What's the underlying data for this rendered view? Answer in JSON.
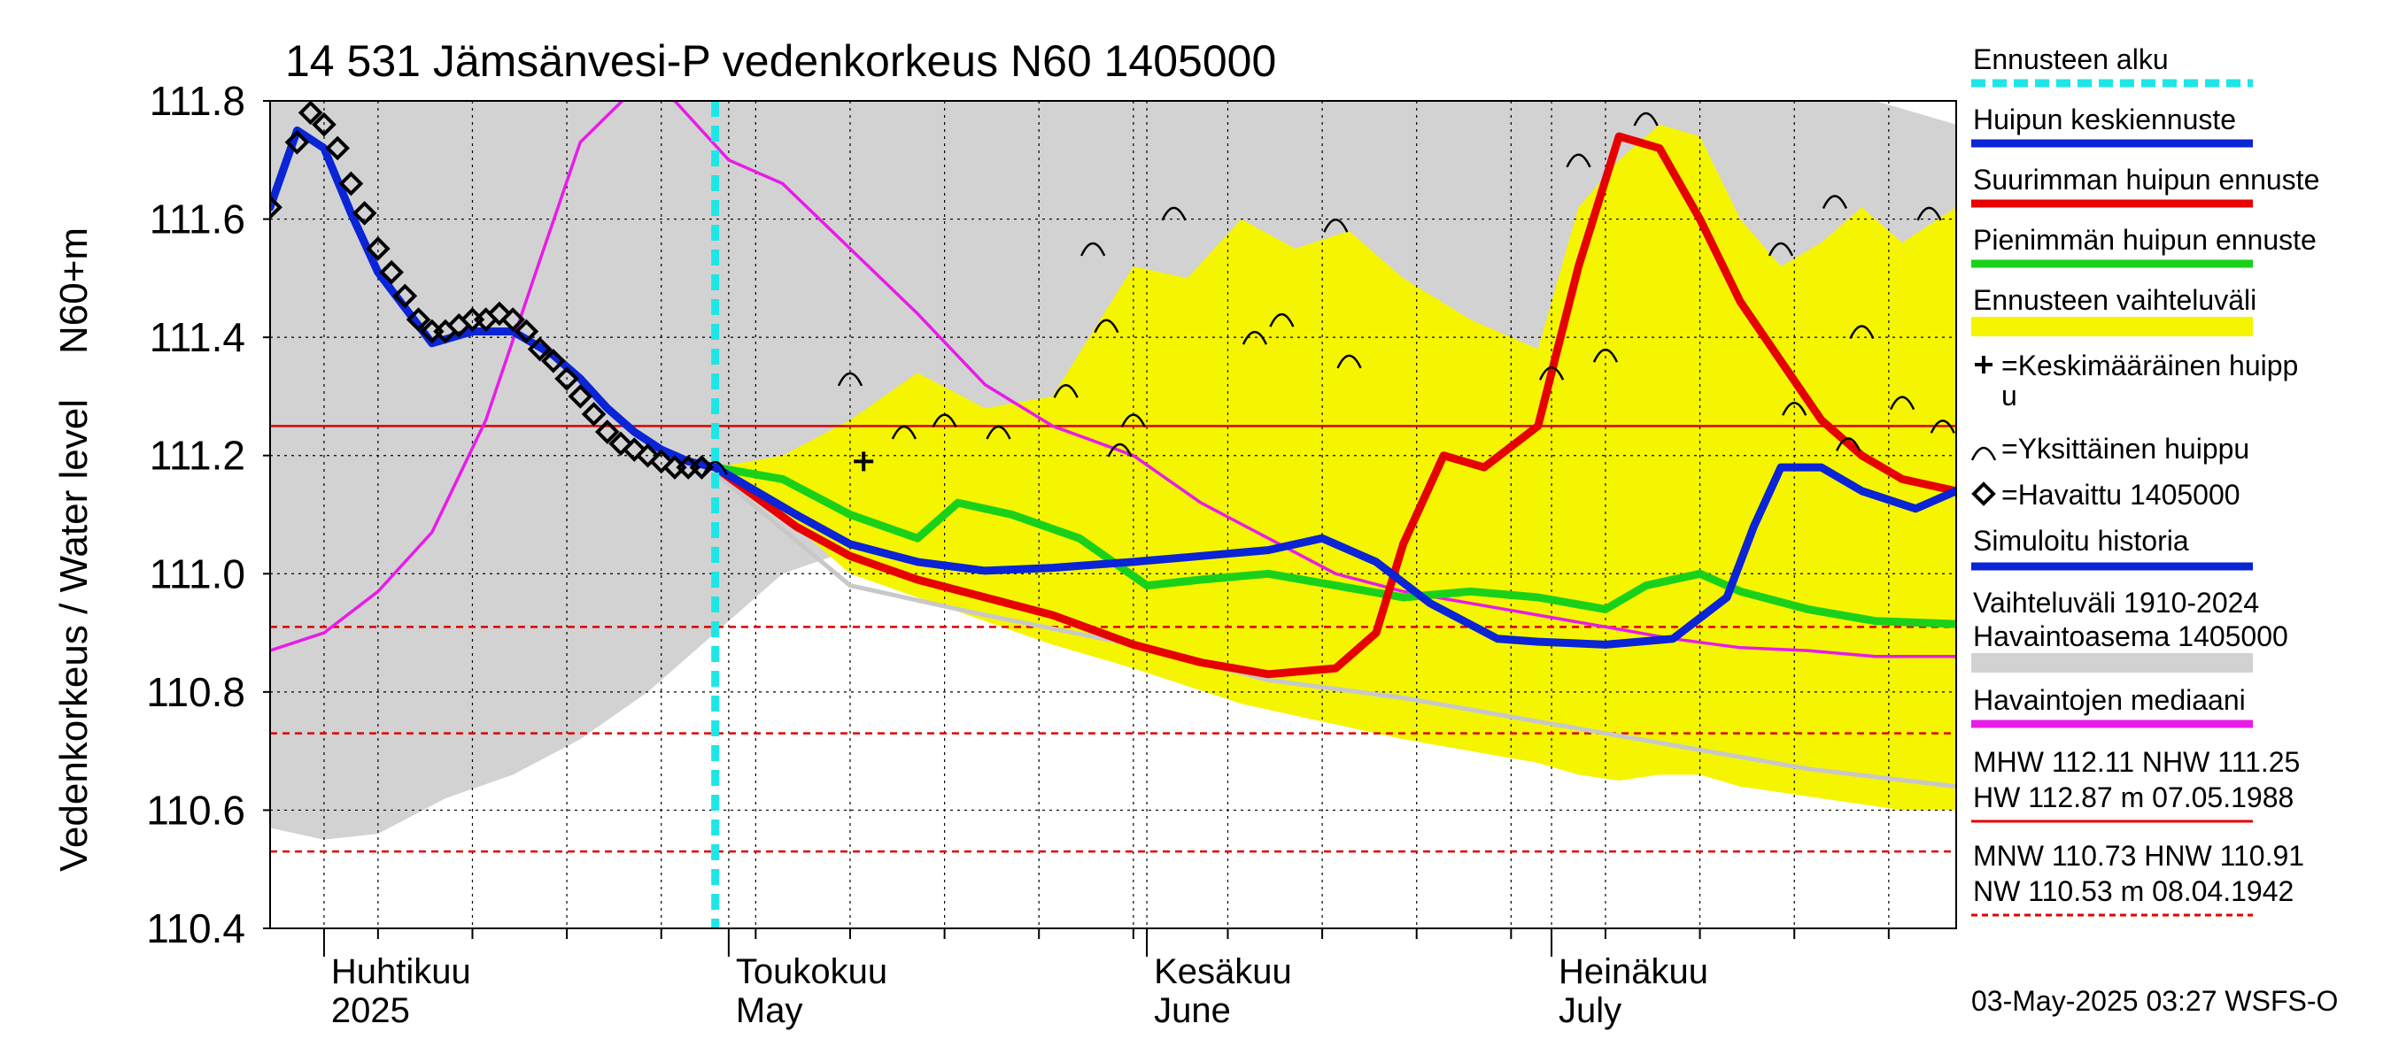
{
  "chart_data": {
    "type": "line",
    "title": "14 531 Jämsänvesi-P vedenkorkeus N60 1405000",
    "ylabel": "Vedenkorkeus / Water level",
    "yunit": "N60+m",
    "ylim": [
      110.4,
      111.8
    ],
    "yticks": [
      "110.4",
      "110.6",
      "110.8",
      "111.0",
      "111.2",
      "111.4",
      "111.6",
      "111.8"
    ],
    "xlim": [
      "2025-03-28",
      "2025-07-31"
    ],
    "months": [
      {
        "fi": "Huhtikuu",
        "en": "2025",
        "date": "2025-04-01"
      },
      {
        "fi": "Toukokuu",
        "en": "May",
        "date": "2025-05-01"
      },
      {
        "fi": "Kesäkuu",
        "en": "June",
        "date": "2025-06-01"
      },
      {
        "fi": "Heinäkuu",
        "en": "July",
        "date": "2025-07-01"
      }
    ],
    "forecast_start": "2025-04-30",
    "reference_lines": [
      {
        "value": 111.25,
        "style": "solid",
        "color": "#e00000"
      },
      {
        "value": 110.91,
        "style": "dashed",
        "color": "#e00000"
      },
      {
        "value": 110.73,
        "style": "dashed",
        "color": "#e00000"
      },
      {
        "value": 110.53,
        "style": "dashed",
        "color": "#e00000"
      }
    ],
    "history_band": {
      "x": [
        "2025-03-28",
        "2025-04-01",
        "2025-04-05",
        "2025-04-10",
        "2025-04-15",
        "2025-04-20",
        "2025-04-25",
        "2025-04-28",
        "2025-05-01",
        "2025-05-05",
        "2025-05-10",
        "2025-05-15",
        "2025-05-20",
        "2025-05-25",
        "2025-05-31",
        "2025-06-05",
        "2025-06-10",
        "2025-06-15",
        "2025-06-20",
        "2025-06-25",
        "2025-06-30",
        "2025-07-05",
        "2025-07-10",
        "2025-07-15",
        "2025-07-20",
        "2025-07-25",
        "2025-07-31"
      ],
      "upper": [
        111.8,
        111.8,
        111.8,
        111.8,
        111.8,
        111.8,
        111.8,
        111.8,
        111.8,
        111.8,
        111.8,
        111.8,
        111.8,
        111.8,
        111.8,
        111.8,
        111.8,
        111.8,
        111.8,
        111.8,
        111.8,
        111.8,
        111.8,
        111.8,
        111.8,
        111.8,
        111.76
      ],
      "lower": [
        110.57,
        110.55,
        110.56,
        110.62,
        110.66,
        110.72,
        110.8,
        110.86,
        110.92,
        111.0,
        111.04,
        110.98,
        110.94,
        110.9,
        110.86,
        110.83,
        110.8,
        110.78,
        110.76,
        110.74,
        110.72,
        110.7,
        110.69,
        110.68,
        110.67,
        110.66,
        110.65
      ]
    },
    "forecast_band": {
      "x": [
        "2025-04-30",
        "2025-05-05",
        "2025-05-10",
        "2025-05-15",
        "2025-05-20",
        "2025-05-25",
        "2025-05-31",
        "2025-06-04",
        "2025-06-08",
        "2025-06-12",
        "2025-06-16",
        "2025-06-20",
        "2025-06-25",
        "2025-06-30",
        "2025-07-03",
        "2025-07-06",
        "2025-07-09",
        "2025-07-12",
        "2025-07-15",
        "2025-07-18",
        "2025-07-21",
        "2025-07-24",
        "2025-07-27",
        "2025-07-31"
      ],
      "upper": [
        111.18,
        111.2,
        111.26,
        111.34,
        111.28,
        111.3,
        111.52,
        111.5,
        111.6,
        111.55,
        111.58,
        111.5,
        111.43,
        111.38,
        111.62,
        111.7,
        111.76,
        111.74,
        111.6,
        111.52,
        111.56,
        111.62,
        111.56,
        111.62
      ],
      "lower": [
        111.17,
        111.1,
        111.0,
        110.96,
        110.92,
        110.88,
        110.84,
        110.81,
        110.78,
        110.76,
        110.74,
        110.72,
        110.7,
        110.68,
        110.66,
        110.65,
        110.66,
        110.66,
        110.64,
        110.63,
        110.62,
        110.61,
        110.6,
        110.6
      ]
    },
    "series": [
      {
        "name": "Huipun keskiennuste",
        "color": "#0a24d6",
        "x": [
          "2025-04-30",
          "2025-05-03",
          "2025-05-06",
          "2025-05-10",
          "2025-05-15",
          "2025-05-20",
          "2025-05-25",
          "2025-05-31",
          "2025-06-05",
          "2025-06-10",
          "2025-06-14",
          "2025-06-18",
          "2025-06-22",
          "2025-06-27",
          "2025-06-30",
          "2025-07-05",
          "2025-07-10",
          "2025-07-14",
          "2025-07-16",
          "2025-07-18",
          "2025-07-21",
          "2025-07-24",
          "2025-07-28",
          "2025-07-31"
        ],
        "y": [
          111.18,
          111.14,
          111.1,
          111.05,
          111.02,
          111.005,
          111.01,
          111.02,
          111.03,
          111.04,
          111.06,
          111.02,
          110.95,
          110.89,
          110.885,
          110.88,
          110.89,
          110.96,
          111.08,
          111.18,
          111.18,
          111.14,
          111.11,
          111.14
        ]
      },
      {
        "name": "Suurimman huipun ennuste",
        "color": "#e60000",
        "x": [
          "2025-04-30",
          "2025-05-03",
          "2025-05-06",
          "2025-05-10",
          "2025-05-15",
          "2025-05-20",
          "2025-05-25",
          "2025-05-31",
          "2025-06-05",
          "2025-06-10",
          "2025-06-15",
          "2025-06-18",
          "2025-06-20",
          "2025-06-23",
          "2025-06-26",
          "2025-06-30",
          "2025-07-03",
          "2025-07-06",
          "2025-07-09",
          "2025-07-12",
          "2025-07-15",
          "2025-07-18",
          "2025-07-21",
          "2025-07-24",
          "2025-07-27",
          "2025-07-31"
        ],
        "y": [
          111.18,
          111.13,
          111.08,
          111.03,
          110.99,
          110.96,
          110.93,
          110.88,
          110.85,
          110.83,
          110.84,
          110.9,
          111.05,
          111.2,
          111.18,
          111.25,
          111.52,
          111.74,
          111.72,
          111.6,
          111.46,
          111.36,
          111.26,
          111.2,
          111.16,
          111.14
        ]
      },
      {
        "name": "Pienimmän huipun ennuste",
        "color": "#1ad11a",
        "x": [
          "2025-04-30",
          "2025-05-05",
          "2025-05-10",
          "2025-05-15",
          "2025-05-18",
          "2025-05-22",
          "2025-05-27",
          "2025-06-01",
          "2025-06-05",
          "2025-06-10",
          "2025-06-15",
          "2025-06-20",
          "2025-06-25",
          "2025-06-30",
          "2025-07-05",
          "2025-07-08",
          "2025-07-12",
          "2025-07-15",
          "2025-07-20",
          "2025-07-25",
          "2025-07-31"
        ],
        "y": [
          111.18,
          111.16,
          111.1,
          111.06,
          111.12,
          111.1,
          111.06,
          110.98,
          110.99,
          111.0,
          110.98,
          110.96,
          110.97,
          110.96,
          110.94,
          110.98,
          111.0,
          110.97,
          110.94,
          110.92,
          110.915
        ]
      },
      {
        "name": "Simuloitu historia",
        "color": "#0a24d6",
        "x": [
          "2025-03-28",
          "2025-03-30",
          "2025-04-01",
          "2025-04-03",
          "2025-04-05",
          "2025-04-07",
          "2025-04-09",
          "2025-04-12",
          "2025-04-15",
          "2025-04-18",
          "2025-04-20",
          "2025-04-22",
          "2025-04-24",
          "2025-04-26",
          "2025-04-28",
          "2025-04-30"
        ],
        "y": [
          111.62,
          111.75,
          111.72,
          111.61,
          111.51,
          111.45,
          111.39,
          111.41,
          111.41,
          111.37,
          111.33,
          111.28,
          111.24,
          111.21,
          111.19,
          111.18
        ]
      },
      {
        "name": "Havaintojen mediaani",
        "color": "#e81ce8",
        "x": [
          "2025-03-28",
          "2025-04-01",
          "2025-04-05",
          "2025-04-09",
          "2025-04-13",
          "2025-04-17",
          "2025-04-20",
          "2025-04-24",
          "2025-04-27",
          "2025-05-01",
          "2025-05-05",
          "2025-05-10",
          "2025-05-15",
          "2025-05-20",
          "2025-05-25",
          "2025-05-31",
          "2025-06-05",
          "2025-06-10",
          "2025-06-15",
          "2025-06-20",
          "2025-06-25",
          "2025-06-30",
          "2025-07-05",
          "2025-07-10",
          "2025-07-15",
          "2025-07-20",
          "2025-07-25",
          "2025-07-31"
        ],
        "y": [
          110.87,
          110.9,
          110.97,
          111.07,
          111.26,
          111.53,
          111.73,
          111.82,
          111.8,
          111.7,
          111.66,
          111.55,
          111.44,
          111.32,
          111.25,
          111.2,
          111.12,
          111.06,
          111.0,
          110.97,
          110.95,
          110.93,
          110.91,
          110.89,
          110.875,
          110.87,
          110.86,
          110.86
        ]
      },
      {
        "name": "Vaihteluväli 1910-2024 Havaintoasema 1405000 (lower)",
        "color": "#c8c8c8",
        "x": [
          "2025-04-30",
          "2025-05-10",
          "2025-05-20",
          "2025-05-31",
          "2025-06-10",
          "2025-06-20",
          "2025-06-30",
          "2025-07-10",
          "2025-07-20",
          "2025-07-31"
        ],
        "y": [
          111.17,
          110.98,
          110.93,
          110.88,
          110.82,
          110.79,
          110.75,
          110.71,
          110.67,
          110.64
        ]
      }
    ],
    "observed": {
      "name": "Havaittu 1405000",
      "x": [
        "2025-03-28",
        "2025-03-30",
        "2025-03-31",
        "2025-04-01",
        "2025-04-02",
        "2025-04-03",
        "2025-04-04",
        "2025-04-05",
        "2025-04-06",
        "2025-04-07",
        "2025-04-08",
        "2025-04-09",
        "2025-04-10",
        "2025-04-11",
        "2025-04-12",
        "2025-04-13",
        "2025-04-14",
        "2025-04-15",
        "2025-04-16",
        "2025-04-17",
        "2025-04-18",
        "2025-04-19",
        "2025-04-20",
        "2025-04-21",
        "2025-04-22",
        "2025-04-23",
        "2025-04-24",
        "2025-04-25",
        "2025-04-26",
        "2025-04-27",
        "2025-04-28",
        "2025-04-29"
      ],
      "y": [
        111.62,
        111.73,
        111.78,
        111.76,
        111.72,
        111.66,
        111.61,
        111.55,
        111.51,
        111.47,
        111.43,
        111.41,
        111.41,
        111.42,
        111.43,
        111.43,
        111.44,
        111.43,
        111.41,
        111.38,
        111.36,
        111.33,
        111.3,
        111.27,
        111.24,
        111.22,
        111.21,
        111.2,
        111.19,
        111.18,
        111.18,
        111.18
      ]
    },
    "single_peaks": [
      {
        "x": "2025-04-30",
        "y": 111.18
      },
      {
        "x": "2025-05-10",
        "y": 111.33
      },
      {
        "x": "2025-05-14",
        "y": 111.24
      },
      {
        "x": "2025-05-17",
        "y": 111.26
      },
      {
        "x": "2025-05-21",
        "y": 111.24
      },
      {
        "x": "2025-05-26",
        "y": 111.31
      },
      {
        "x": "2025-05-28",
        "y": 111.55
      },
      {
        "x": "2025-05-29",
        "y": 111.42
      },
      {
        "x": "2025-05-30",
        "y": 111.21
      },
      {
        "x": "2025-05-31",
        "y": 111.26
      },
      {
        "x": "2025-06-03",
        "y": 111.61
      },
      {
        "x": "2025-06-09",
        "y": 111.4
      },
      {
        "x": "2025-06-11",
        "y": 111.43
      },
      {
        "x": "2025-06-15",
        "y": 111.59
      },
      {
        "x": "2025-06-16",
        "y": 111.36
      },
      {
        "x": "2025-07-01",
        "y": 111.34
      },
      {
        "x": "2025-07-03",
        "y": 111.7
      },
      {
        "x": "2025-07-05",
        "y": 111.37
      },
      {
        "x": "2025-07-08",
        "y": 111.77
      },
      {
        "x": "2025-07-18",
        "y": 111.55
      },
      {
        "x": "2025-07-19",
        "y": 111.28
      },
      {
        "x": "2025-07-22",
        "y": 111.63
      },
      {
        "x": "2025-07-23",
        "y": 111.22
      },
      {
        "x": "2025-07-24",
        "y": 111.41
      },
      {
        "x": "2025-07-27",
        "y": 111.29
      },
      {
        "x": "2025-07-29",
        "y": 111.61
      },
      {
        "x": "2025-07-30",
        "y": 111.25
      }
    ],
    "mean_peak": {
      "x": "2025-05-11",
      "y": 111.19
    }
  },
  "legend": {
    "items": [
      {
        "label": "Ennusteen alku",
        "kind": "dash",
        "color": "#1de6e6"
      },
      {
        "label": "Huipun keskiennuste",
        "kind": "line",
        "color": "#0a24d6"
      },
      {
        "label": "Suurimman huipun ennuste",
        "kind": "line",
        "color": "#e60000"
      },
      {
        "label": "Pienimmän huipun ennuste",
        "kind": "line",
        "color": "#1ad11a"
      },
      {
        "label": "Ennusteen vaihteluväli",
        "kind": "band",
        "color": "#f5f500"
      },
      {
        "label_line1": "=Keskimääräinen huipp",
        "label_line2": "u",
        "kind": "plus"
      },
      {
        "label": "=Yksittäinen huippu",
        "kind": "arc"
      },
      {
        "label": "=Havaittu 1405000",
        "kind": "diamond"
      },
      {
        "label": "Simuloitu historia",
        "kind": "line",
        "color": "#0a24d6"
      },
      {
        "label_line1": "Vaihteluväli 1910-2024",
        "label_line2": " Havaintoasema 1405000",
        "kind": "band",
        "color": "#d2d2d2"
      },
      {
        "label": "Havaintojen mediaani",
        "kind": "line",
        "color": "#e81ce8"
      },
      {
        "label_line1": "MHW 112.11 NHW 111.25",
        "label_line2": "HW 112.87 m 07.05.1988",
        "kind": "line",
        "color": "#e60000"
      },
      {
        "label_line1": "MNW 110.73 HNW 110.91",
        "label_line2": "NW 110.53 m 08.04.1942",
        "kind": "dash",
        "color": "#e60000"
      }
    ]
  },
  "footer": {
    "timestamp": "03-May-2025 03:27 WSFS-O"
  },
  "colors": {
    "grid": "#000000",
    "history_band": "#d2d2d2",
    "forecast_band": "#f5f500",
    "forecast_start": "#1de6e6",
    "reference": "#e60000"
  }
}
